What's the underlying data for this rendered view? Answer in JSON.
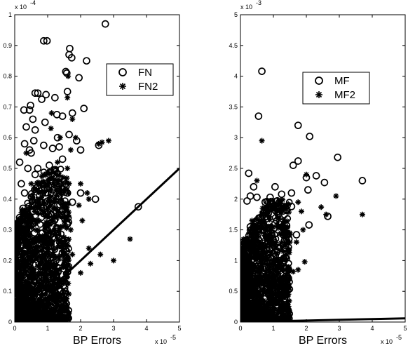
{
  "chart_data": [
    {
      "type": "scatter",
      "xlabel": "BP Errors",
      "x_multiplier": "x 10",
      "x_exponent": "-5",
      "y_multiplier": "x 10",
      "y_exponent": "-4",
      "xlim": [
        0,
        5
      ],
      "ylim": [
        0,
        1
      ],
      "xticks": [
        "0",
        "1",
        "2",
        "3",
        "4",
        "5"
      ],
      "yticks": [
        "0",
        "0.1",
        "0.2",
        "0.3",
        "0.4",
        "0.5",
        "0.6",
        "0.7",
        "0.8",
        "0.9",
        "1"
      ],
      "legend": {
        "placement": "upper-right",
        "entries": [
          "FN",
          "FN2"
        ]
      },
      "grid": false,
      "series": [
        {
          "name": "FN",
          "marker": "circle",
          "points": [
            [
              2.75,
              0.97
            ],
            [
              0.88,
              0.915
            ],
            [
              0.98,
              0.915
            ],
            [
              1.67,
              0.89
            ],
            [
              1.65,
              0.87
            ],
            [
              1.73,
              0.86
            ],
            [
              2.18,
              0.85
            ],
            [
              1.55,
              0.815
            ],
            [
              1.58,
              0.81
            ],
            [
              1.95,
              0.795
            ],
            [
              0.62,
              0.745
            ],
            [
              0.7,
              0.745
            ],
            [
              1.6,
              0.75
            ],
            [
              0.95,
              0.74
            ],
            [
              0.82,
              0.725
            ],
            [
              1.22,
              0.73
            ],
            [
              0.48,
              0.705
            ],
            [
              0.28,
              0.69
            ],
            [
              0.45,
              0.69
            ],
            [
              1.75,
              0.68
            ],
            [
              2.1,
              0.695
            ],
            [
              1.28,
              0.675
            ],
            [
              0.55,
              0.66
            ],
            [
              0.92,
              0.65
            ],
            [
              1.45,
              0.67
            ],
            [
              0.35,
              0.635
            ],
            [
              0.62,
              0.625
            ],
            [
              0.58,
              0.59
            ],
            [
              1.3,
              0.6
            ],
            [
              1.65,
              0.61
            ],
            [
              1.88,
              0.59
            ],
            [
              0.3,
              0.58
            ],
            [
              0.88,
              0.575
            ],
            [
              1.15,
              0.565
            ],
            [
              1.35,
              0.57
            ],
            [
              2.0,
              0.56
            ],
            [
              2.55,
              0.575
            ],
            [
              0.45,
              0.56
            ],
            [
              0.5,
              0.55
            ],
            [
              0.15,
              0.52
            ],
            [
              0.4,
              0.5
            ],
            [
              0.7,
              0.5
            ],
            [
              1.05,
              0.51
            ],
            [
              1.45,
              0.53
            ],
            [
              0.62,
              0.48
            ],
            [
              1.25,
              0.47
            ],
            [
              1.55,
              0.45
            ],
            [
              0.2,
              0.45
            ],
            [
              0.85,
              0.45
            ],
            [
              1.15,
              0.43
            ],
            [
              1.6,
              0.42
            ],
            [
              2.0,
              0.42
            ],
            [
              0.3,
              0.42
            ],
            [
              0.75,
              0.41
            ],
            [
              1.35,
              0.41
            ],
            [
              1.75,
              0.39
            ],
            [
              2.45,
              0.4
            ],
            [
              3.75,
              0.375
            ],
            [
              0.25,
              0.37
            ],
            [
              0.55,
              0.36
            ],
            [
              1.0,
              0.36
            ],
            [
              1.45,
              0.36
            ],
            [
              0.15,
              0.34
            ],
            [
              0.4,
              0.33
            ],
            [
              0.8,
              0.34
            ],
            [
              1.2,
              0.33
            ],
            [
              1.6,
              0.32
            ],
            [
              0.35,
              0.3
            ],
            [
              0.6,
              0.29
            ],
            [
              0.95,
              0.3
            ],
            [
              1.3,
              0.29
            ],
            [
              0.2,
              0.27
            ],
            [
              0.5,
              0.26
            ],
            [
              0.85,
              0.26
            ],
            [
              1.1,
              0.25
            ],
            [
              0.3,
              0.23
            ],
            [
              0.65,
              0.22
            ],
            [
              1.0,
              0.21
            ],
            [
              1.25,
              0.2
            ],
            [
              0.15,
              0.2
            ],
            [
              0.45,
              0.19
            ],
            [
              0.8,
              0.18
            ],
            [
              0.25,
              0.16
            ],
            [
              0.55,
              0.15
            ],
            [
              0.9,
              0.15
            ],
            [
              0.12,
              0.13
            ],
            [
              0.4,
              0.12
            ],
            [
              0.7,
              0.11
            ],
            [
              0.2,
              0.09
            ],
            [
              0.5,
              0.08
            ],
            [
              0.1,
              0.06
            ],
            [
              0.3,
              0.05
            ],
            [
              0.15,
              0.03
            ],
            [
              0.08,
              0.02
            ]
          ]
        },
        {
          "name": "FN2",
          "marker": "asterisk",
          "points": [
            [
              1.62,
              0.8
            ],
            [
              1.6,
              0.73
            ],
            [
              1.12,
              0.68
            ],
            [
              1.75,
              0.66
            ],
            [
              1.1,
              0.63
            ],
            [
              1.38,
              0.6
            ],
            [
              1.85,
              0.6
            ],
            [
              2.55,
              0.58
            ],
            [
              2.85,
              0.59
            ],
            [
              2.65,
              0.585
            ],
            [
              1.7,
              0.56
            ],
            [
              1.3,
              0.52
            ],
            [
              1.6,
              0.5
            ],
            [
              0.9,
              0.48
            ],
            [
              2.2,
              0.42
            ],
            [
              2.0,
              0.45
            ],
            [
              2.25,
              0.4
            ],
            [
              1.95,
              0.38
            ],
            [
              2.05,
              0.33
            ],
            [
              1.7,
              0.3
            ],
            [
              3.5,
              0.27
            ],
            [
              1.2,
              0.3
            ],
            [
              2.25,
              0.24
            ],
            [
              1.75,
              0.22
            ],
            [
              2.6,
              0.22
            ],
            [
              3.0,
              0.2
            ],
            [
              2.3,
              0.19
            ],
            [
              1.5,
              0.2
            ],
            [
              2.0,
              0.16
            ],
            [
              1.35,
              0.17
            ],
            [
              1.0,
              0.12
            ],
            [
              1.35,
              0.09
            ],
            [
              0.75,
              0.05
            ],
            [
              0.6,
              0.04
            ],
            [
              0.5,
              0.03
            ],
            [
              0.35,
              0.55
            ],
            [
              0.5,
              0.45
            ],
            [
              0.7,
              0.4
            ],
            [
              0.4,
              0.35
            ],
            [
              1.1,
              0.38
            ],
            [
              0.25,
              0.3
            ],
            [
              0.6,
              0.33
            ],
            [
              0.3,
              0.25
            ],
            [
              0.85,
              0.28
            ],
            [
              1.4,
              0.26
            ],
            [
              0.55,
              0.2
            ],
            [
              0.9,
              0.22
            ],
            [
              0.2,
              0.15
            ],
            [
              0.65,
              0.14
            ],
            [
              1.1,
              0.16
            ],
            [
              0.3,
              0.1
            ],
            [
              0.8,
              0.09
            ],
            [
              0.45,
              0.06
            ],
            [
              0.15,
              0.05
            ],
            [
              0.25,
              0.02
            ]
          ]
        }
      ],
      "fit_line": {
        "x": [
          0,
          5
        ],
        "y": [
          0,
          0.5
        ]
      }
    },
    {
      "type": "scatter",
      "xlabel": "BP Errors",
      "x_multiplier": "x 10",
      "x_exponent": "-5",
      "y_multiplier": "x 10",
      "y_exponent": "-3",
      "xlim": [
        0,
        5
      ],
      "ylim": [
        0,
        5
      ],
      "xticks": [
        "0",
        "1",
        "2",
        "3",
        "4",
        "5"
      ],
      "yticks": [
        "0",
        "0.5",
        "1",
        "1.5",
        "2",
        "2.5",
        "3",
        "3.5",
        "4",
        "4.5",
        "5"
      ],
      "legend": {
        "placement": "upper-right",
        "entries": [
          "MF",
          "MF2"
        ]
      },
      "grid": false,
      "series": [
        {
          "name": "MF",
          "marker": "circle",
          "points": [
            [
              0.65,
              4.08
            ],
            [
              0.55,
              3.35
            ],
            [
              1.75,
              3.2
            ],
            [
              2.1,
              3.02
            ],
            [
              2.95,
              2.68
            ],
            [
              1.75,
              2.62
            ],
            [
              2.3,
              2.38
            ],
            [
              0.25,
              2.42
            ],
            [
              1.6,
              2.55
            ],
            [
              2.0,
              2.35
            ],
            [
              3.7,
              2.3
            ],
            [
              2.55,
              2.27
            ],
            [
              2.05,
              2.15
            ],
            [
              0.4,
              2.2
            ],
            [
              1.05,
              2.2
            ],
            [
              1.55,
              2.1
            ],
            [
              0.3,
              2.05
            ],
            [
              0.5,
              2.03
            ],
            [
              0.9,
              2.03
            ],
            [
              1.25,
              2.08
            ],
            [
              0.75,
              1.95
            ],
            [
              1.55,
              1.88
            ],
            [
              0.2,
              1.97
            ],
            [
              1.15,
              1.8
            ],
            [
              2.65,
              1.72
            ],
            [
              0.6,
              1.7
            ],
            [
              1.05,
              1.6
            ],
            [
              1.4,
              1.57
            ],
            [
              0.3,
              1.55
            ],
            [
              2.08,
              1.58
            ],
            [
              0.85,
              1.48
            ],
            [
              1.3,
              1.42
            ],
            [
              1.7,
              1.42
            ],
            [
              0.45,
              1.38
            ],
            [
              1.0,
              1.3
            ],
            [
              0.2,
              1.25
            ],
            [
              0.7,
              1.2
            ],
            [
              1.35,
              1.2
            ],
            [
              0.4,
              1.1
            ],
            [
              0.9,
              1.05
            ],
            [
              1.2,
              1.0
            ],
            [
              0.25,
              0.95
            ],
            [
              0.6,
              0.9
            ],
            [
              0.95,
              0.85
            ],
            [
              0.35,
              0.75
            ],
            [
              0.75,
              0.7
            ],
            [
              0.2,
              0.6
            ],
            [
              0.5,
              0.55
            ],
            [
              0.3,
              0.4
            ],
            [
              0.15,
              0.3
            ],
            [
              0.1,
              0.15
            ]
          ]
        },
        {
          "name": "MF2",
          "marker": "asterisk",
          "points": [
            [
              0.65,
              2.95
            ],
            [
              2.0,
              2.4
            ],
            [
              0.5,
              2.3
            ],
            [
              1.45,
              1.92
            ],
            [
              1.75,
              1.95
            ],
            [
              2.9,
              2.05
            ],
            [
              2.45,
              1.87
            ],
            [
              2.6,
              1.75
            ],
            [
              1.2,
              1.9
            ],
            [
              1.85,
              1.8
            ],
            [
              3.7,
              1.75
            ],
            [
              1.9,
              1.5
            ],
            [
              1.5,
              1.42
            ],
            [
              1.7,
              1.3
            ],
            [
              1.45,
              1.15
            ],
            [
              1.95,
              0.98
            ],
            [
              1.75,
              0.85
            ],
            [
              1.2,
              0.88
            ],
            [
              1.6,
              0.82
            ],
            [
              1.3,
              0.55
            ],
            [
              0.95,
              0.45
            ],
            [
              0.7,
              0.35
            ],
            [
              0.5,
              0.3
            ],
            [
              0.55,
              0.02
            ],
            [
              0.35,
              1.65
            ],
            [
              0.75,
              1.5
            ],
            [
              0.25,
              1.3
            ],
            [
              1.0,
              1.25
            ],
            [
              0.55,
              1.1
            ],
            [
              0.3,
              0.85
            ],
            [
              1.0,
              0.7
            ],
            [
              0.6,
              0.65
            ],
            [
              0.2,
              0.55
            ],
            [
              0.85,
              0.5
            ],
            [
              0.4,
              0.45
            ],
            [
              0.15,
              0.2
            ]
          ]
        }
      ],
      "fit_line": {
        "x": [
          0,
          5
        ],
        "y": [
          0,
          0.06
        ]
      }
    }
  ]
}
